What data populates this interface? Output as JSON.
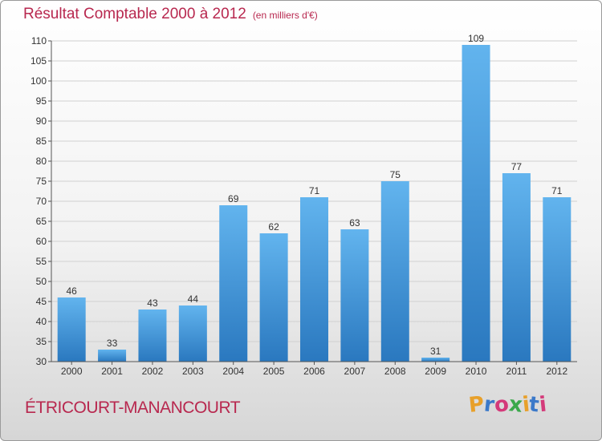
{
  "header": {
    "title": "Résultat Comptable 2000 à 2012",
    "unit": "(en milliers d'€)"
  },
  "footer": {
    "commune": "ÉTRICOURT-MANANCOURT",
    "logo_text": "Proxiti",
    "logo_colors": [
      "#e8a02a",
      "#3b79c9",
      "#d43a7a",
      "#3aa84a",
      "#e8a02a",
      "#3b79c9",
      "#d43a7a"
    ]
  },
  "colors": {
    "title": "#b8284f",
    "bar_top": "#62b4ee",
    "bar_bottom": "#2a78bf"
  },
  "chart_data": {
    "type": "bar",
    "title": "Résultat Comptable 2000 à 2012",
    "subtitle": "(en milliers d'€)",
    "xlabel": "",
    "ylabel": "",
    "categories": [
      "2000",
      "2001",
      "2002",
      "2003",
      "2004",
      "2005",
      "2006",
      "2007",
      "2008",
      "2009",
      "2010",
      "2011",
      "2012"
    ],
    "values": [
      46,
      33,
      43,
      44,
      69,
      62,
      71,
      63,
      75,
      31,
      109,
      77,
      71
    ],
    "ylim": [
      30,
      110
    ],
    "yticks": [
      30,
      35,
      40,
      45,
      50,
      55,
      60,
      65,
      70,
      75,
      80,
      85,
      90,
      95,
      100,
      105,
      110
    ],
    "grid": true,
    "legend": "none"
  }
}
